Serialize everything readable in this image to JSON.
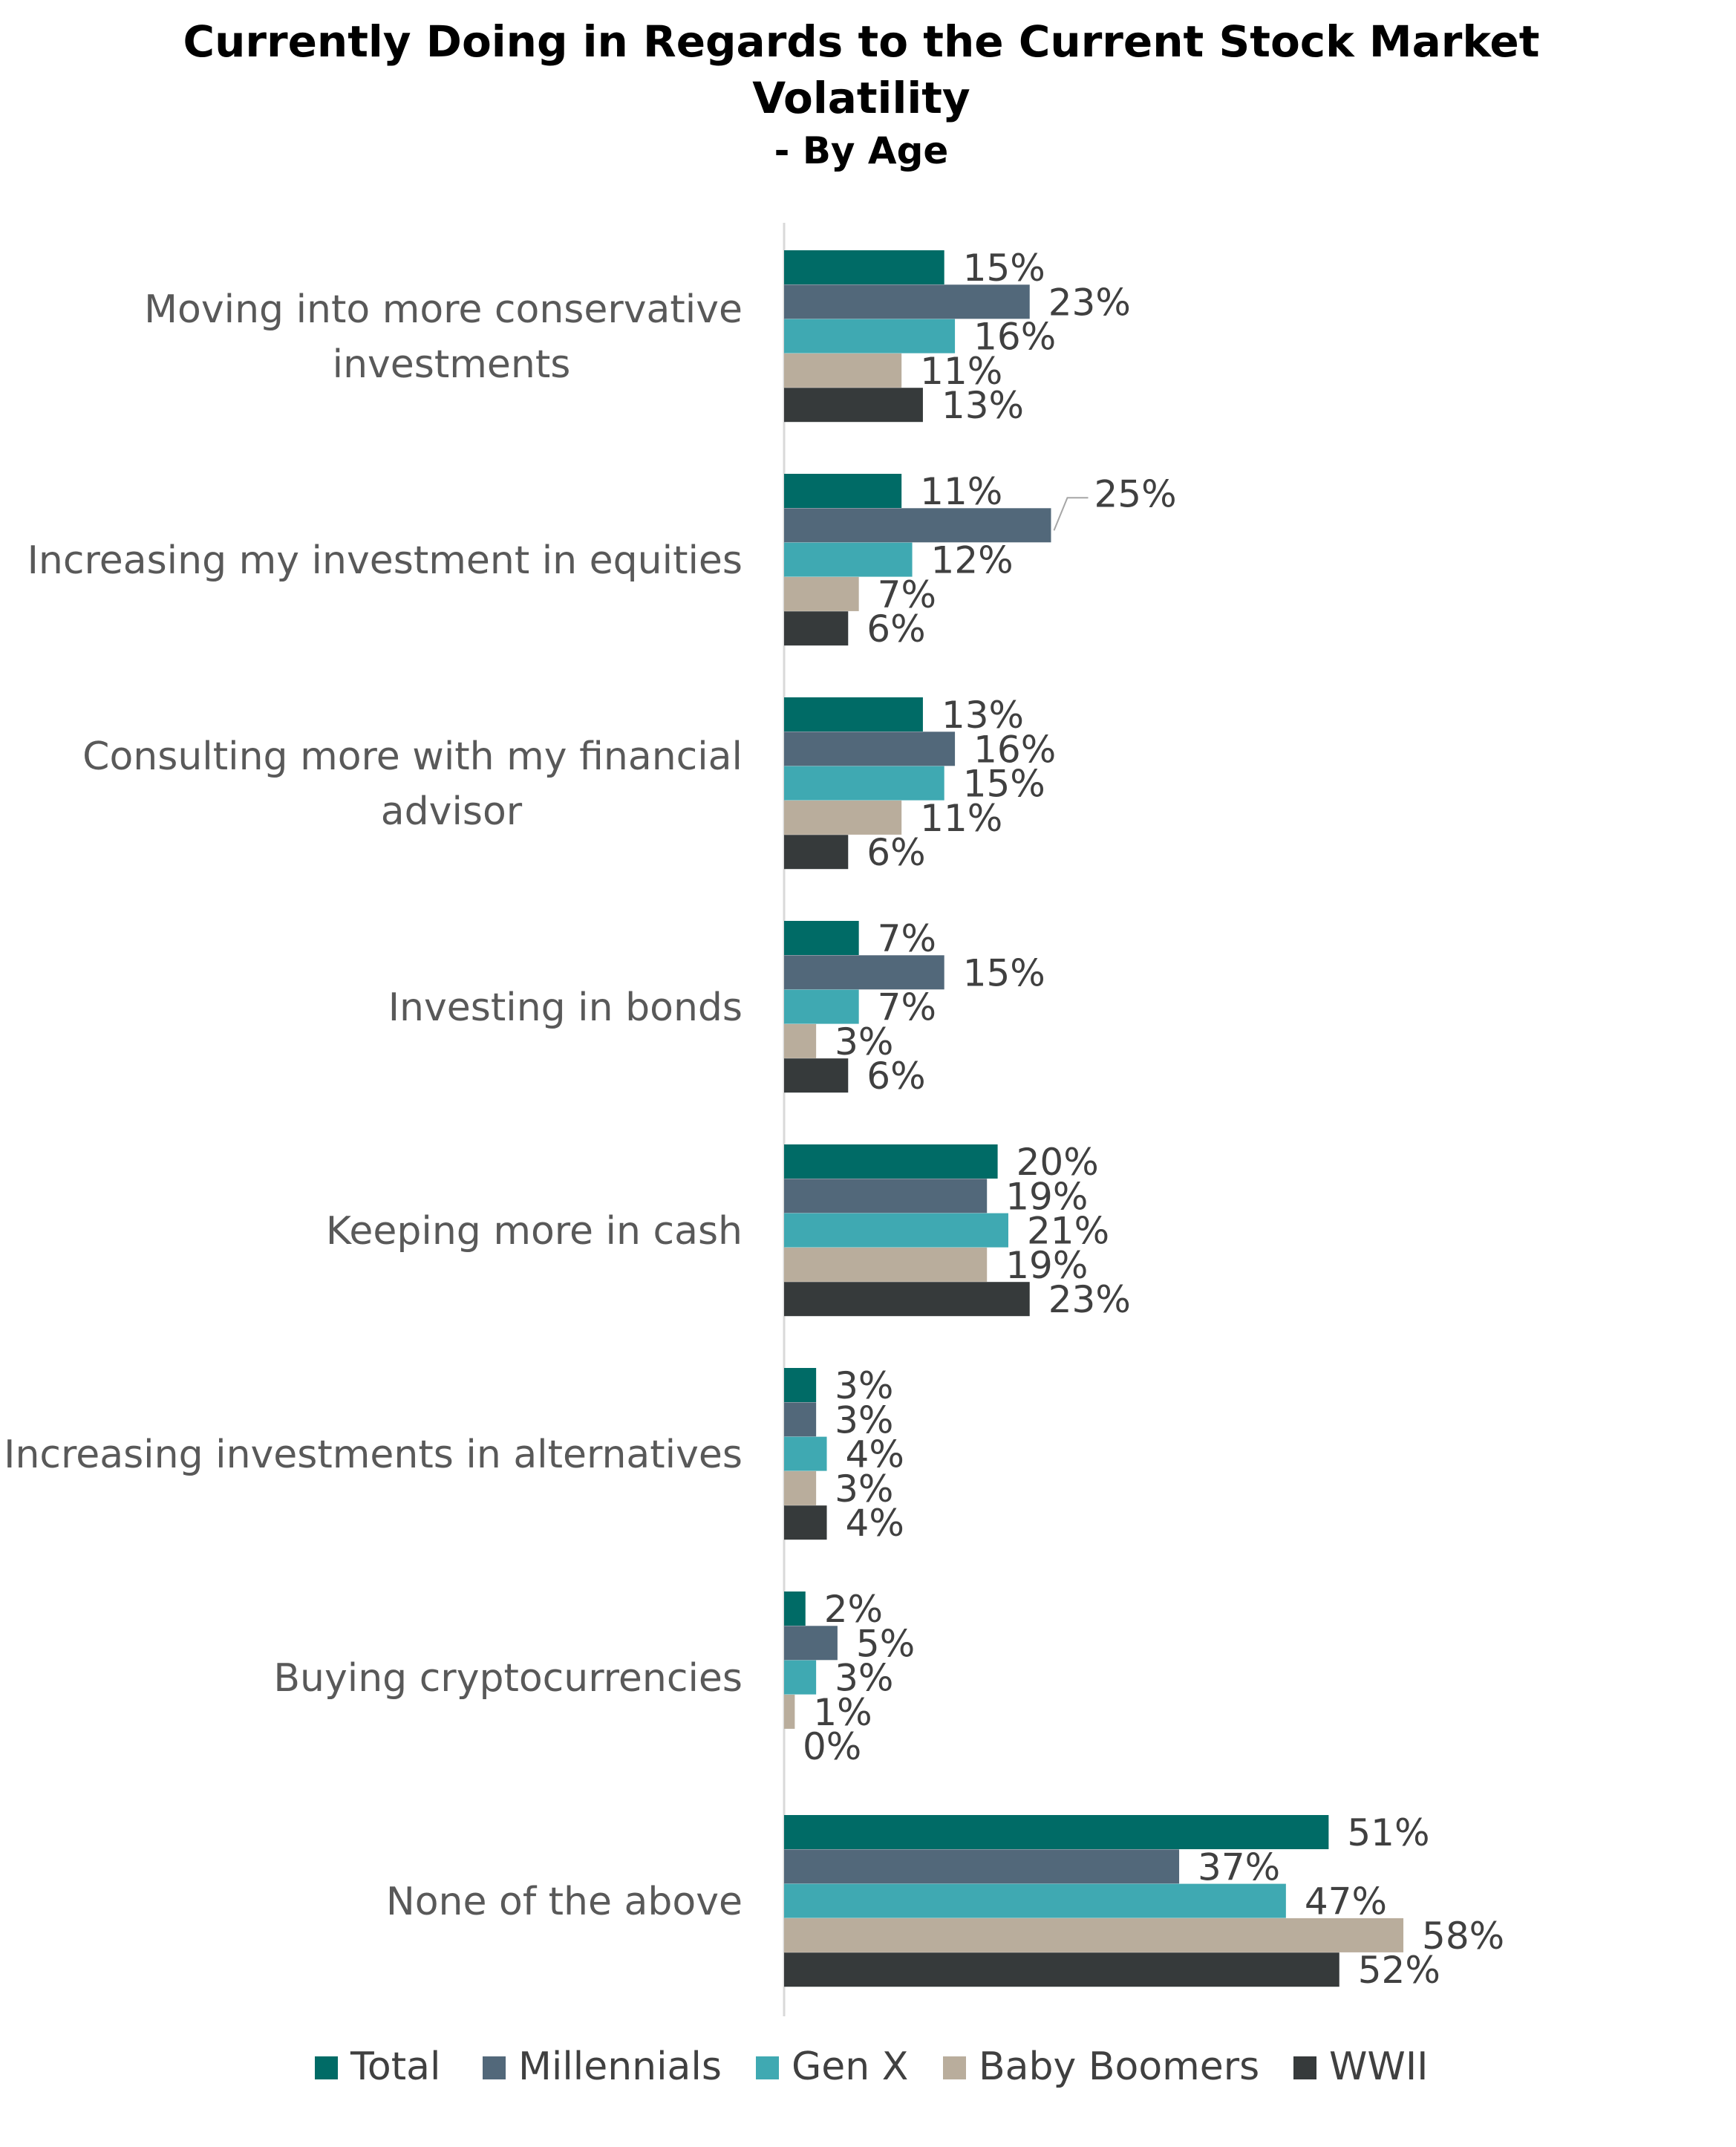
{
  "chart_data": {
    "type": "bar",
    "orientation": "horizontal",
    "title": "Currently Doing in Regards to the Current Stock Market Volatility",
    "title_lines": [
      "Currently Doing in Regards to the Current Stock Market",
      "Volatility"
    ],
    "subtitle": "- By Age",
    "categories": [
      "Moving into more conservative investments",
      "Increasing my investment in equities",
      "Consulting more with my financial advisor",
      "Investing in bonds",
      "Keeping more in cash",
      "Increasing investments in alternatives",
      "Buying cryptocurrencies",
      "None of the above"
    ],
    "category_lines": [
      [
        "Moving into more conservative",
        "investments"
      ],
      [
        "Increasing my investment in equities"
      ],
      [
        "Consulting more with my financial",
        "advisor"
      ],
      [
        "Investing in bonds"
      ],
      [
        "Keeping more in cash"
      ],
      [
        "Increasing investments in alternatives"
      ],
      [
        "Buying cryptocurrencies"
      ],
      [
        "None of the above"
      ]
    ],
    "series": [
      {
        "name": "Total",
        "color": "#006B66",
        "values": [
          15,
          11,
          13,
          7,
          20,
          3,
          2,
          51
        ]
      },
      {
        "name": "Millennials",
        "color": "#52687A",
        "values": [
          23,
          25,
          16,
          15,
          19,
          3,
          5,
          37
        ]
      },
      {
        "name": "Gen X",
        "color": "#3FA9B2",
        "values": [
          16,
          12,
          15,
          7,
          21,
          4,
          3,
          47
        ]
      },
      {
        "name": "Baby Boomers",
        "color": "#B9AD9C",
        "values": [
          11,
          7,
          11,
          3,
          19,
          3,
          1,
          58
        ]
      },
      {
        "name": "WWII",
        "color": "#363A3B",
        "values": [
          13,
          6,
          6,
          6,
          23,
          4,
          0,
          52
        ]
      }
    ],
    "value_suffix": "%",
    "xlim": [
      0,
      100
    ],
    "grid": false,
    "legend_position": "bottom",
    "axis_line_color": "#D9D9D9"
  }
}
